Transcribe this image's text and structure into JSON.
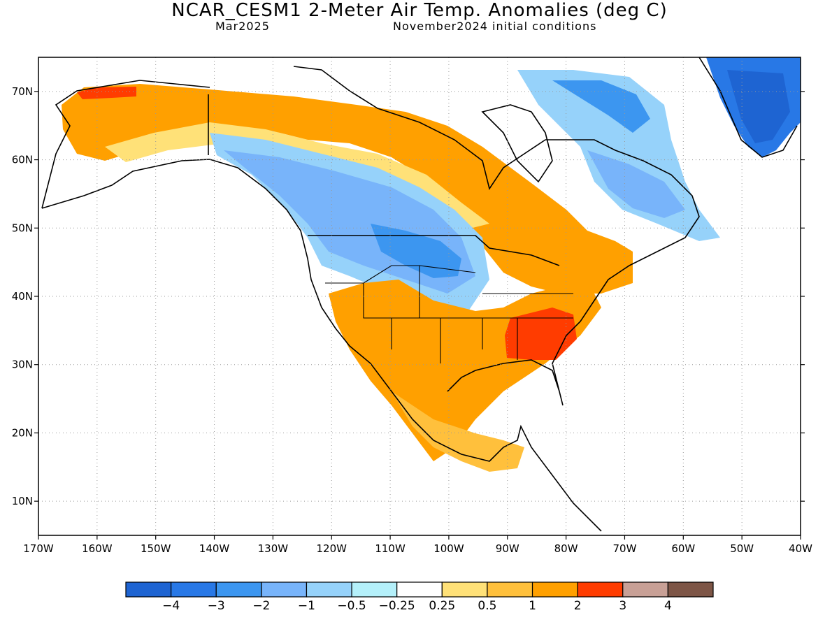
{
  "title": "NCAR_CESM1 2-Meter Air Temp. Anomalies (deg C)",
  "subtitle_left": "Mar2025",
  "subtitle_right": "November2024 initial conditions",
  "map": {
    "lon_range": [
      -170,
      -40
    ],
    "lat_range": [
      5,
      75
    ],
    "lon_ticks": [
      "170W",
      "160W",
      "150W",
      "140W",
      "130W",
      "120W",
      "110W",
      "100W",
      "90W",
      "80W",
      "70W",
      "60W",
      "50W",
      "40W"
    ],
    "lat_ticks": [
      "10N",
      "20N",
      "30N",
      "40N",
      "50N",
      "60N",
      "70N"
    ],
    "grid": true
  },
  "colorbar": {
    "colors": [
      "#1e64d2",
      "#2878e6",
      "#3c96f0",
      "#78b4fa",
      "#96d2fa",
      "#b4f0fa",
      "#ffffff",
      "#ffe178",
      "#ffc03c",
      "#ffa000",
      "#ff3c00",
      "#c8a096",
      "#7d5546"
    ],
    "labels": [
      "−4",
      "−3",
      "−2",
      "−1",
      "−0.5",
      "−0.25",
      "0.25",
      "0.5",
      "1",
      "2",
      "3",
      "4"
    ]
  },
  "regions": [
    {
      "name": "alaska-warm-anomaly",
      "level": "1"
    },
    {
      "name": "northwest-alaska-strong-warm",
      "level": "3"
    },
    {
      "name": "western-canada-cold-anomaly",
      "level": "-2"
    },
    {
      "name": "northern-plains-cold-anomaly",
      "level": "-3"
    },
    {
      "name": "southwest-us-warm-anomaly",
      "level": "1"
    },
    {
      "name": "southeast-us-strong-warm",
      "level": "3"
    },
    {
      "name": "eastern-canada-cold-anomaly",
      "level": "-1"
    },
    {
      "name": "greenland-cold-anomaly",
      "level": "-4"
    },
    {
      "name": "mexico-warm-anomaly",
      "level": "1"
    }
  ]
}
